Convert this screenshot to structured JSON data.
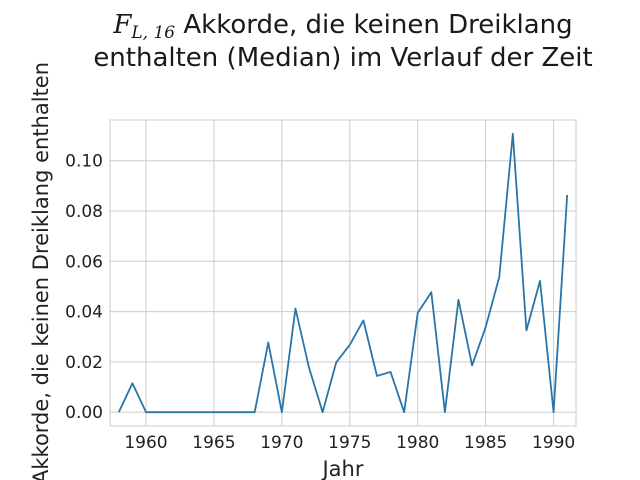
{
  "chart_data": {
    "type": "line",
    "title": {
      "math": "F",
      "subscript": "L, 16",
      "line1_rest": " Akkorde, die keinen Dreiklang",
      "line2": "enthalten (Median) im Verlauf der Zeit"
    },
    "xlabel": "Jahr",
    "ylabel": "Akkorde, die keinen Dreiklang enthalten",
    "xlim": [
      1957.35,
      1991.65
    ],
    "ylim": [
      -0.0055,
      0.1162
    ],
    "xticks": [
      1960,
      1965,
      1970,
      1975,
      1980,
      1985,
      1990
    ],
    "yticks": [
      "0.00",
      "0.02",
      "0.04",
      "0.06",
      "0.08",
      "0.10"
    ],
    "grid": true,
    "line_color": "#2a75a8",
    "x": [
      1958,
      1959,
      1960,
      1961,
      1962,
      1963,
      1964,
      1965,
      1966,
      1967,
      1968,
      1969,
      1970,
      1971,
      1972,
      1973,
      1974,
      1975,
      1976,
      1977,
      1978,
      1979,
      1980,
      1981,
      1982,
      1983,
      1984,
      1985,
      1986,
      1987,
      1988,
      1989,
      1990,
      1991
    ],
    "y": [
      0.0,
      0.0115,
      0.0,
      0.0,
      0.0,
      0.0,
      0.0,
      0.0,
      0.0,
      0.0,
      0.0,
      0.0277,
      0.0,
      0.0412,
      0.0177,
      0.0,
      0.0198,
      0.0268,
      0.0365,
      0.0144,
      0.016,
      0.0,
      0.0395,
      0.0477,
      0.0,
      0.0447,
      0.0186,
      0.0338,
      0.0537,
      0.1107,
      0.0325,
      0.0522,
      0.0,
      0.0864
    ]
  }
}
